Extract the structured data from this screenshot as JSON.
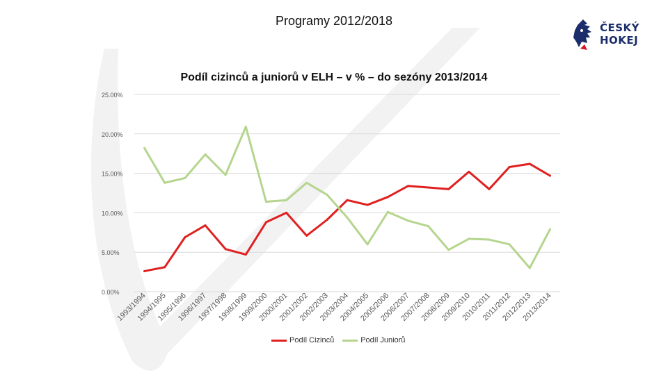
{
  "slide": {
    "title": "Programy 2012/2018"
  },
  "logo": {
    "line1": "ČESKÝ",
    "line2": "HOKEJ",
    "brand_color": "#1b2d6b",
    "accent_color": "#d7132a"
  },
  "chart_data": {
    "type": "line",
    "title": "Podíl cizinců a juniorů v ELH – v % – do sezóny 2013/2014",
    "xlabel": "",
    "ylabel": "",
    "ylim": [
      0,
      25
    ],
    "yticks": [
      "0.00%",
      "5.00%",
      "10.00%",
      "15.00%",
      "20.00%",
      "25.00%"
    ],
    "grid": true,
    "legend_position": "bottom",
    "categories": [
      "1993/1994",
      "1994/1995",
      "1995/1996",
      "1996/1997",
      "1997/1998",
      "1998/1999",
      "1999/2000",
      "2000/2001",
      "2001/2002",
      "2002/2003",
      "2003/2004",
      "2004/2005",
      "2005/2006",
      "2006/2007",
      "2007/2008",
      "2008/2009",
      "2009/2010",
      "2010/2011",
      "2011/2012",
      "2012/2013",
      "2013/2014"
    ],
    "series": [
      {
        "name": "Podíl Cizinců",
        "color": "#e02020",
        "values": [
          2.6,
          3.1,
          6.9,
          8.4,
          5.4,
          4.7,
          8.8,
          10.0,
          7.1,
          9.1,
          11.6,
          11.0,
          12.0,
          13.4,
          13.2,
          13.0,
          15.2,
          13.0,
          15.8,
          16.2,
          14.7
        ]
      },
      {
        "name": "Podíl Juniorů",
        "color": "#b5d58e",
        "values": [
          18.2,
          13.8,
          14.4,
          17.4,
          14.8,
          20.9,
          11.4,
          11.6,
          13.8,
          12.3,
          9.4,
          6.0,
          10.1,
          9.0,
          8.3,
          5.3,
          6.7,
          6.6,
          6.0,
          3.0,
          7.9
        ]
      }
    ]
  }
}
